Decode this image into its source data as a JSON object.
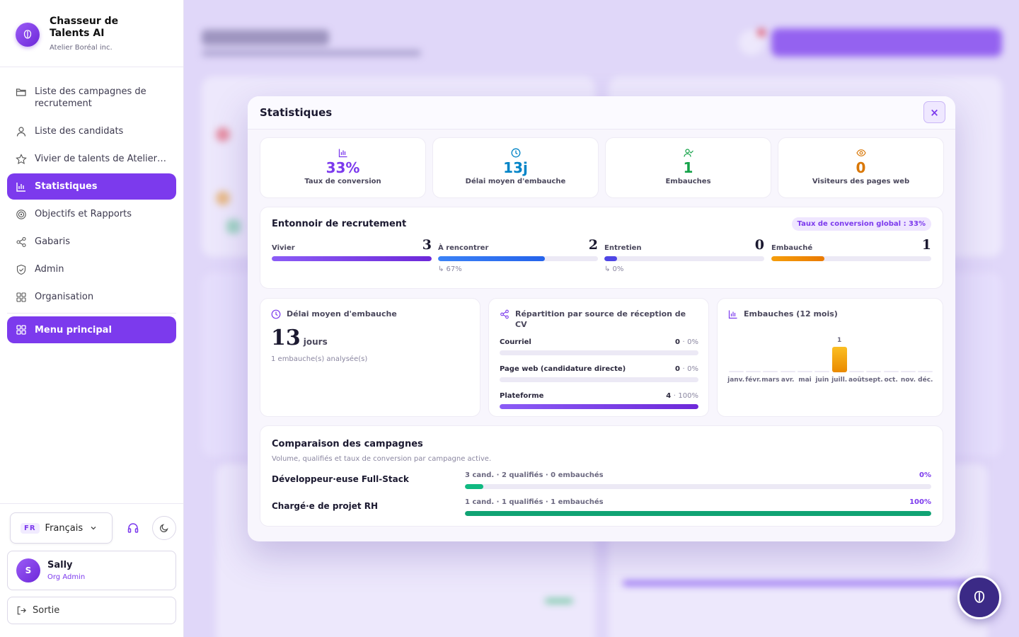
{
  "sidebar": {
    "brand_name": "Chasseur de Talents AI",
    "brand_org": "Atelier Boréal inc.",
    "items": [
      {
        "label": "Liste des campagnes de recrutement"
      },
      {
        "label": "Liste des candidats"
      },
      {
        "label": "Vivier de talents de Atelier Boréal inc."
      },
      {
        "label": "Statistiques"
      },
      {
        "label": "Objectifs et Rapports"
      },
      {
        "label": "Gabaris"
      },
      {
        "label": "Admin"
      },
      {
        "label": "Organisation"
      }
    ],
    "menu_main": "Menu principal",
    "lang_code": "FR",
    "lang_label": "Français",
    "user_initial": "S",
    "user_name": "Sally",
    "user_role": "Org Admin",
    "logout": "Sortie"
  },
  "modal": {
    "title": "Statistiques",
    "close": "×",
    "kpis": [
      {
        "value": "33%",
        "label": "Taux de conversion",
        "color": "#7c3aed"
      },
      {
        "value": "13j",
        "label": "Délai moyen d'embauche",
        "color": "#0284c7"
      },
      {
        "value": "1",
        "label": "Embauches",
        "color": "#16a34a"
      },
      {
        "value": "0",
        "label": "Visiteurs des pages web",
        "color": "#d97706"
      }
    ],
    "funnel": {
      "title": "Entonnoir de recrutement",
      "badge": "Taux de conversion global : 33%",
      "stages": [
        {
          "name": "Vivier",
          "count": "3",
          "fill": 1.0,
          "color": "#7c3aed",
          "conv": ""
        },
        {
          "name": "À rencontrer",
          "count": "2",
          "fill": 0.67,
          "color": "#3b82f6",
          "conv": "↳ 67%"
        },
        {
          "name": "Entretien",
          "count": "0",
          "fill": 0.08,
          "color": "#4f46e5",
          "conv": "↳ 0%"
        },
        {
          "name": "Embauché",
          "count": "1",
          "fill": 0.33,
          "color": "#ea8a00",
          "conv": ""
        }
      ]
    },
    "delay": {
      "title": "Délai moyen d'embauche",
      "value": "13",
      "unit": "jours",
      "note": "1 embauche(s) analysée(s)"
    },
    "sources": {
      "title": "Répartition par source de réception de CV",
      "rows": [
        {
          "name": "Courriel",
          "count": "0",
          "pct": "0%",
          "fill": 0
        },
        {
          "name": "Page web (candidature directe)",
          "count": "0",
          "pct": "0%",
          "fill": 0
        },
        {
          "name": "Plateforme",
          "count": "4",
          "pct": "100%",
          "fill": 1.0
        }
      ]
    },
    "hires": {
      "title": "Embauches (12 mois)",
      "value_label": "1"
    },
    "compare": {
      "title": "Comparaison des campagnes",
      "subtitle": "Volume, qualifiés et taux de conversion par campagne active.",
      "rows": [
        {
          "name": "Développeur·euse Full-Stack",
          "meta": "3 cand. · 2 qualifiés · 0 embauchés",
          "pct": "0%",
          "fill": 0.04
        },
        {
          "name": "Chargé·e de projet RH",
          "meta": "1 cand. · 1 qualifiés · 1 embauchés",
          "pct": "100%",
          "fill": 1.0
        }
      ]
    }
  },
  "chart_data": {
    "type": "bar",
    "title": "Embauches (12 mois)",
    "categories": [
      "janv.",
      "févr.",
      "mars",
      "avr.",
      "mai",
      "juin",
      "juill.",
      "août",
      "sept.",
      "oct.",
      "nov.",
      "déc."
    ],
    "values": [
      0,
      0,
      0,
      0,
      0,
      0,
      1,
      0,
      0,
      0,
      0,
      0
    ],
    "ylim": [
      0,
      1
    ],
    "color": "#f59e0b",
    "data_labels": [
      "",
      "",
      "",
      "",
      "",
      "",
      "1",
      "",
      "",
      "",
      "",
      ""
    ]
  }
}
